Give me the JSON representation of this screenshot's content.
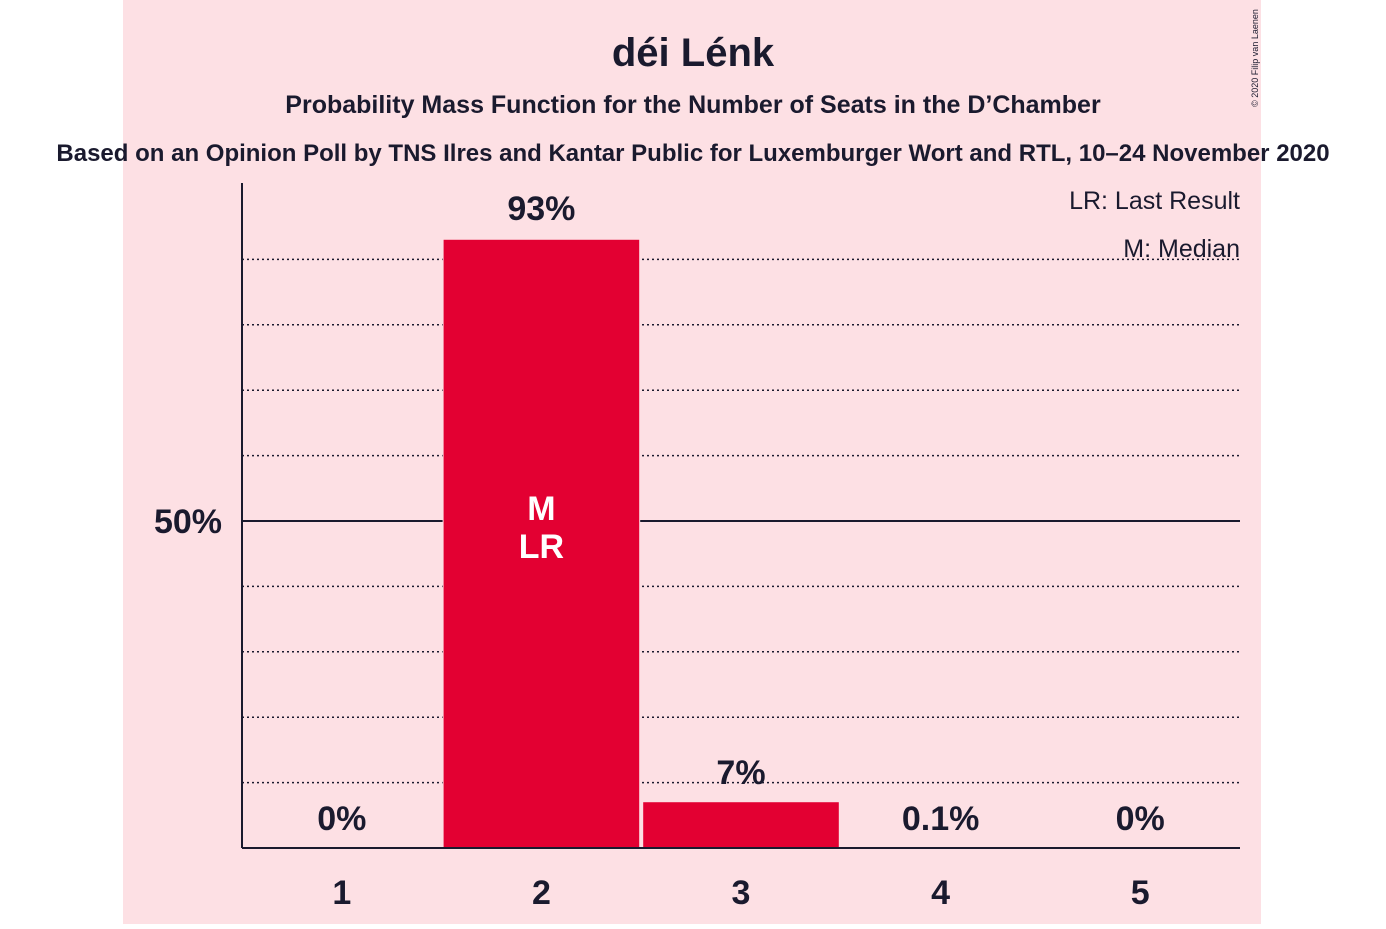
{
  "copyright": "© 2020 Filip van Laenen",
  "legend": {
    "last_result": "LR: Last Result",
    "median": "M: Median"
  },
  "colors": {
    "background_band": "#fde0e4",
    "bar": "#e30032",
    "axis": "#1a1a2e",
    "text": "#1a1a2e",
    "bar_label": "#ffffff"
  },
  "chart_data": {
    "type": "bar",
    "title": "déi Lénk",
    "subtitle": "Probability Mass Function for the Number of Seats in the D’Chamber",
    "source": "Based on an Opinion Poll by TNS Ilres and Kantar Public for Luxemburger Wort and RTL, 10–24 November 2020",
    "xlabel": "",
    "ylabel": "",
    "categories": [
      "1",
      "2",
      "3",
      "4",
      "5"
    ],
    "values": [
      0,
      93,
      7,
      0.1,
      0
    ],
    "value_labels": [
      "0%",
      "93%",
      "7%",
      "0.1%",
      "0%"
    ],
    "ylim": [
      0,
      100
    ],
    "y_tick_labels": [
      {
        "value": 50,
        "label": "50%"
      }
    ],
    "gridlines": [
      10,
      20,
      30,
      40,
      60,
      70,
      80,
      90
    ],
    "grid": true,
    "legend_position": "top-right",
    "median_category": "2",
    "last_result_category": "2",
    "bar_marker_lines": [
      "M",
      "LR"
    ]
  }
}
